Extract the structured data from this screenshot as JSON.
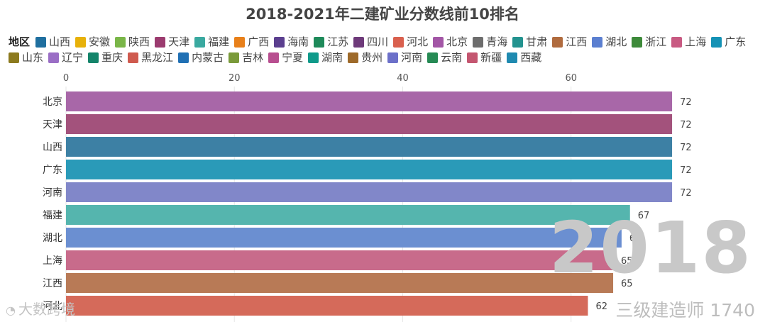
{
  "title": "2018-2021年二建矿业分数线前10排名",
  "legend": {
    "title": "地区",
    "items": [
      {
        "name": "山西",
        "color": "#1f6f9f"
      },
      {
        "name": "安徽",
        "color": "#e7b10a"
      },
      {
        "name": "陕西",
        "color": "#7ab648"
      },
      {
        "name": "天津",
        "color": "#9b3b6f"
      },
      {
        "name": "福建",
        "color": "#3aa9a0"
      },
      {
        "name": "广西",
        "color": "#e8801a"
      },
      {
        "name": "海南",
        "color": "#5b3f8f"
      },
      {
        "name": "江苏",
        "color": "#1e8a5a"
      },
      {
        "name": "四川",
        "color": "#6e3a7a"
      },
      {
        "name": "河北",
        "color": "#d9604e"
      },
      {
        "name": "北京",
        "color": "#a356a6"
      },
      {
        "name": "青海",
        "color": "#6d6d6d"
      },
      {
        "name": "甘肃",
        "color": "#23938f"
      },
      {
        "name": "江西",
        "color": "#b06b3e"
      },
      {
        "name": "湖北",
        "color": "#5b7fd0"
      },
      {
        "name": "浙江",
        "color": "#3d8a3a"
      },
      {
        "name": "上海",
        "color": "#c85a82"
      },
      {
        "name": "广东",
        "color": "#1592b5"
      },
      {
        "name": "山东",
        "color": "#8c7a1e"
      },
      {
        "name": "辽宁",
        "color": "#9a6ec5"
      },
      {
        "name": "重庆",
        "color": "#14846a"
      },
      {
        "name": "黑龙江",
        "color": "#cf5a4e"
      },
      {
        "name": "内蒙古",
        "color": "#2070b4"
      },
      {
        "name": "吉林",
        "color": "#7a9a3a"
      },
      {
        "name": "宁夏",
        "color": "#b84f90"
      },
      {
        "name": "湖南",
        "color": "#0f9a8a"
      },
      {
        "name": "贵州",
        "color": "#9e6a2a"
      },
      {
        "name": "河南",
        "color": "#6c70c9"
      },
      {
        "name": "云南",
        "color": "#268a54"
      },
      {
        "name": "新疆",
        "color": "#c45670"
      },
      {
        "name": "西藏",
        "color": "#1f8ab0"
      }
    ]
  },
  "chart_data": {
    "type": "bar",
    "orientation": "horizontal",
    "title": "2018-2021年二建矿业分数线前10排名",
    "categories": [
      "北京",
      "天津",
      "山西",
      "广东",
      "河南",
      "福建",
      "湖北",
      "上海",
      "江西",
      "河北"
    ],
    "values": [
      72,
      72,
      72,
      72,
      72,
      67,
      66,
      65,
      65,
      62
    ],
    "colors": [
      "#a867a8",
      "#a3527c",
      "#3d80a4",
      "#2a9ab8",
      "#8187c9",
      "#55b5ae",
      "#6b8fd1",
      "#c86b8b",
      "#b87a56",
      "#d56a5a"
    ],
    "x_ticks": [
      0,
      20,
      40,
      60
    ],
    "xlim": [
      0,
      72.5
    ],
    "grid": true,
    "legend_position": "top"
  },
  "overlay": {
    "year": "2018",
    "watermark_right": "三级建造师 1740",
    "watermark_left": "大数跨境"
  }
}
